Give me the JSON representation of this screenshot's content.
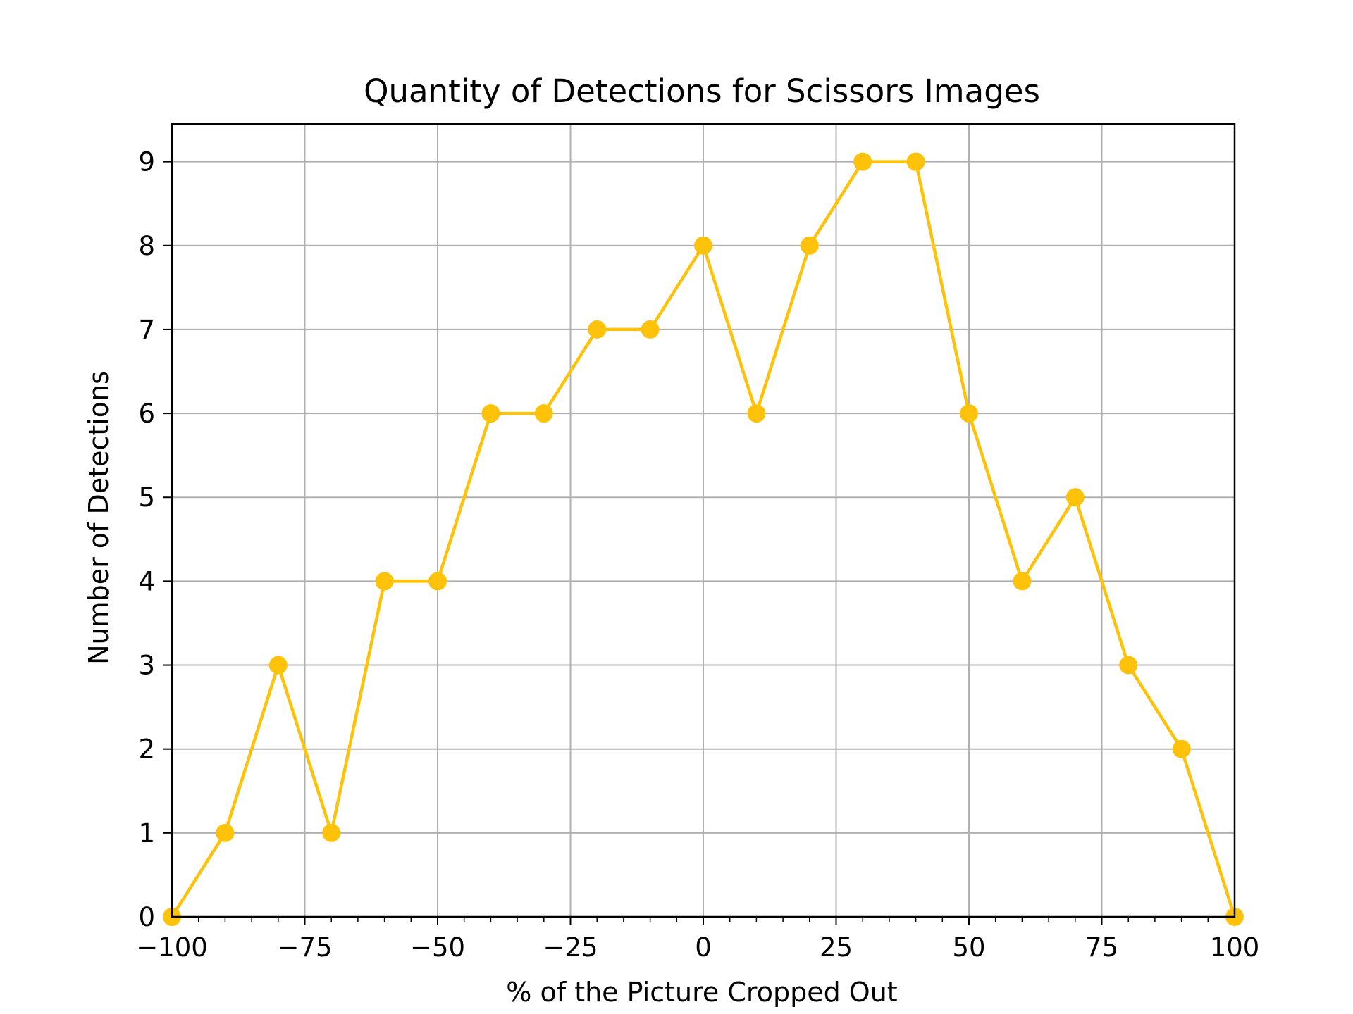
{
  "chart_data": {
    "type": "line",
    "title": "Quantity of Detections for Scissors Images",
    "xlabel": "% of the Picture Cropped Out",
    "ylabel": "Number of Detections",
    "xlim": [
      -100,
      100
    ],
    "ylim": [
      0,
      9.45
    ],
    "xticks": [
      -100,
      -75,
      -50,
      -25,
      0,
      25,
      50,
      75,
      100
    ],
    "xtick_labels": [
      "−100",
      "−75",
      "−50",
      "−25",
      "0",
      "25",
      "50",
      "75",
      "100"
    ],
    "yticks": [
      0,
      1,
      2,
      3,
      4,
      5,
      6,
      7,
      8,
      9
    ],
    "ytick_labels": [
      "0",
      "1",
      "2",
      "3",
      "4",
      "5",
      "6",
      "7",
      "8",
      "9"
    ],
    "grid": true,
    "series_color": "#FFC20A",
    "x": [
      -100,
      -90,
      -80,
      -70,
      -60,
      -50,
      -40,
      -30,
      -20,
      -10,
      0,
      10,
      20,
      30,
      40,
      50,
      60,
      70,
      80,
      90,
      100
    ],
    "series": [
      {
        "values": [
          0,
          1,
          3,
          1,
          4,
          4,
          6,
          6,
          7,
          7,
          8,
          6,
          8,
          9,
          9,
          6,
          4,
          5,
          3,
          2,
          0
        ]
      }
    ]
  }
}
